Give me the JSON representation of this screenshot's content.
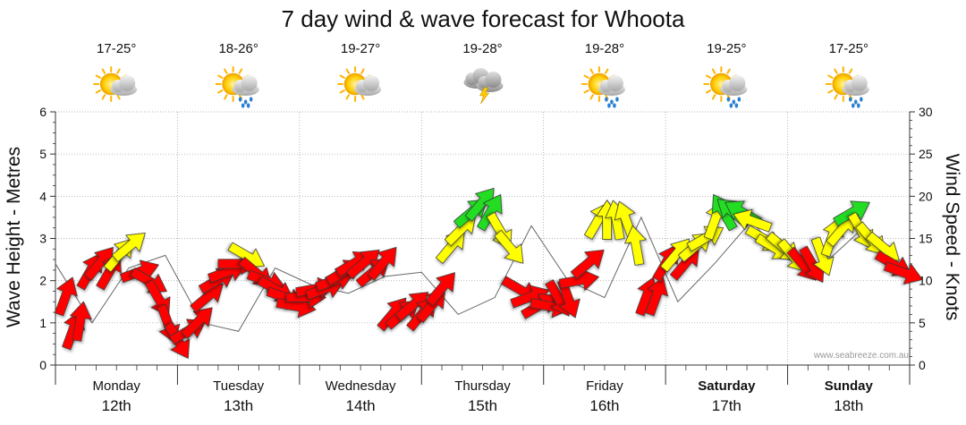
{
  "chart_data": {
    "type": "line",
    "title": "7 day wind & wave forecast for Whoota",
    "ylabel_left": "Wave Height - Metres",
    "ylabel_right": "Wind Speed - Knots",
    "ylim_left": [
      0,
      6
    ],
    "ylim_right": [
      0,
      30
    ],
    "yticks_left": [
      0,
      1,
      2,
      3,
      4,
      5,
      6
    ],
    "yticks_right": [
      0,
      5,
      10,
      15,
      20,
      25,
      30
    ],
    "watermark": "www.seabreeze.com.au",
    "days": [
      {
        "name": "Monday",
        "date": "12th",
        "temp": "17-25°",
        "weather": "partly-cloudy",
        "bold": false
      },
      {
        "name": "Tuesday",
        "date": "13th",
        "temp": "18-26°",
        "weather": "showers",
        "bold": false
      },
      {
        "name": "Wednesday",
        "date": "14th",
        "temp": "19-27°",
        "weather": "partly-cloudy",
        "bold": false
      },
      {
        "name": "Thursday",
        "date": "15th",
        "temp": "19-28°",
        "weather": "storm",
        "bold": false
      },
      {
        "name": "Friday",
        "date": "16th",
        "temp": "19-28°",
        "weather": "showers",
        "bold": false
      },
      {
        "name": "Saturday",
        "date": "17th",
        "temp": "19-25°",
        "weather": "showers",
        "bold": true
      },
      {
        "name": "Sunday",
        "date": "18th",
        "temp": "17-25°",
        "weather": "showers",
        "bold": true
      }
    ],
    "wave_height_m": {
      "x_day": [
        0.0,
        0.3,
        0.6,
        0.9,
        1.2,
        1.5,
        1.8,
        2.1,
        2.4,
        2.7,
        3.0,
        3.3,
        3.6,
        3.9,
        4.2,
        4.5,
        4.8,
        5.1,
        5.4,
        5.7,
        6.0,
        6.3,
        6.6,
        6.9
      ],
      "values": [
        2.4,
        1.0,
        2.3,
        2.6,
        1.0,
        0.8,
        2.3,
        1.9,
        1.7,
        2.1,
        2.2,
        1.2,
        1.6,
        3.3,
        2.0,
        1.6,
        3.5,
        1.5,
        2.4,
        3.4,
        2.5,
        2.4,
        3.2,
        2.2
      ]
    },
    "wind": {
      "x_day": [
        0.08,
        0.14,
        0.2,
        0.28,
        0.36,
        0.44,
        0.52,
        0.6,
        0.68,
        0.76,
        0.84,
        0.92,
        1.0,
        1.08,
        1.16,
        1.24,
        1.32,
        1.4,
        1.48,
        1.56,
        1.64,
        1.72,
        1.8,
        1.88,
        1.96,
        2.04,
        2.12,
        2.2,
        2.28,
        2.36,
        2.44,
        2.52,
        2.6,
        2.68,
        2.76,
        2.84,
        2.92,
        3.0,
        3.08,
        3.16,
        3.24,
        3.32,
        3.4,
        3.48,
        3.56,
        3.64,
        3.72,
        3.8,
        3.88,
        3.96,
        4.04,
        4.12,
        4.2,
        4.28,
        4.36,
        4.44,
        4.52,
        4.6,
        4.68,
        4.76,
        4.84,
        4.92,
        5.0,
        5.08,
        5.16,
        5.24,
        5.32,
        5.4,
        5.48,
        5.56,
        5.64,
        5.72,
        5.8,
        5.88,
        5.96,
        6.04,
        6.12,
        6.2,
        6.28,
        6.36,
        6.44,
        6.52,
        6.6,
        6.68,
        6.78,
        6.86,
        6.94
      ],
      "knots": [
        8,
        4,
        5,
        11,
        12,
        11,
        13,
        14,
        11,
        10,
        8,
        5,
        3,
        4,
        5,
        8,
        10,
        11,
        12,
        13,
        11,
        10,
        9,
        8,
        7,
        8,
        9,
        9,
        10,
        11,
        12,
        12,
        11,
        12,
        6,
        6,
        7,
        6,
        7,
        9,
        14,
        16,
        18,
        19,
        18,
        16,
        14,
        9,
        8,
        7,
        7,
        8,
        8,
        10,
        12,
        17,
        17,
        17,
        17,
        14,
        8,
        8,
        12,
        13,
        12,
        14,
        15,
        17,
        18,
        18,
        18,
        17,
        15,
        14,
        14,
        13,
        12,
        12,
        13,
        15,
        16,
        18,
        16,
        15,
        14,
        12,
        11
      ],
      "direction_deg": [
        200,
        200,
        190,
        210,
        220,
        210,
        220,
        230,
        250,
        300,
        330,
        340,
        330,
        240,
        225,
        230,
        240,
        250,
        270,
        300,
        310,
        290,
        300,
        290,
        280,
        270,
        260,
        250,
        250,
        240,
        240,
        230,
        230,
        220,
        220,
        230,
        230,
        220,
        220,
        220,
        220,
        225,
        230,
        220,
        210,
        330,
        320,
        300,
        250,
        240,
        280,
        330,
        340,
        260,
        230,
        210,
        180,
        170,
        160,
        170,
        200,
        200,
        210,
        220,
        220,
        230,
        240,
        200,
        150,
        130,
        120,
        110,
        300,
        300,
        310,
        320,
        320,
        330,
        340,
        200,
        220,
        240,
        330,
        320,
        310,
        300,
        290
      ]
    }
  }
}
